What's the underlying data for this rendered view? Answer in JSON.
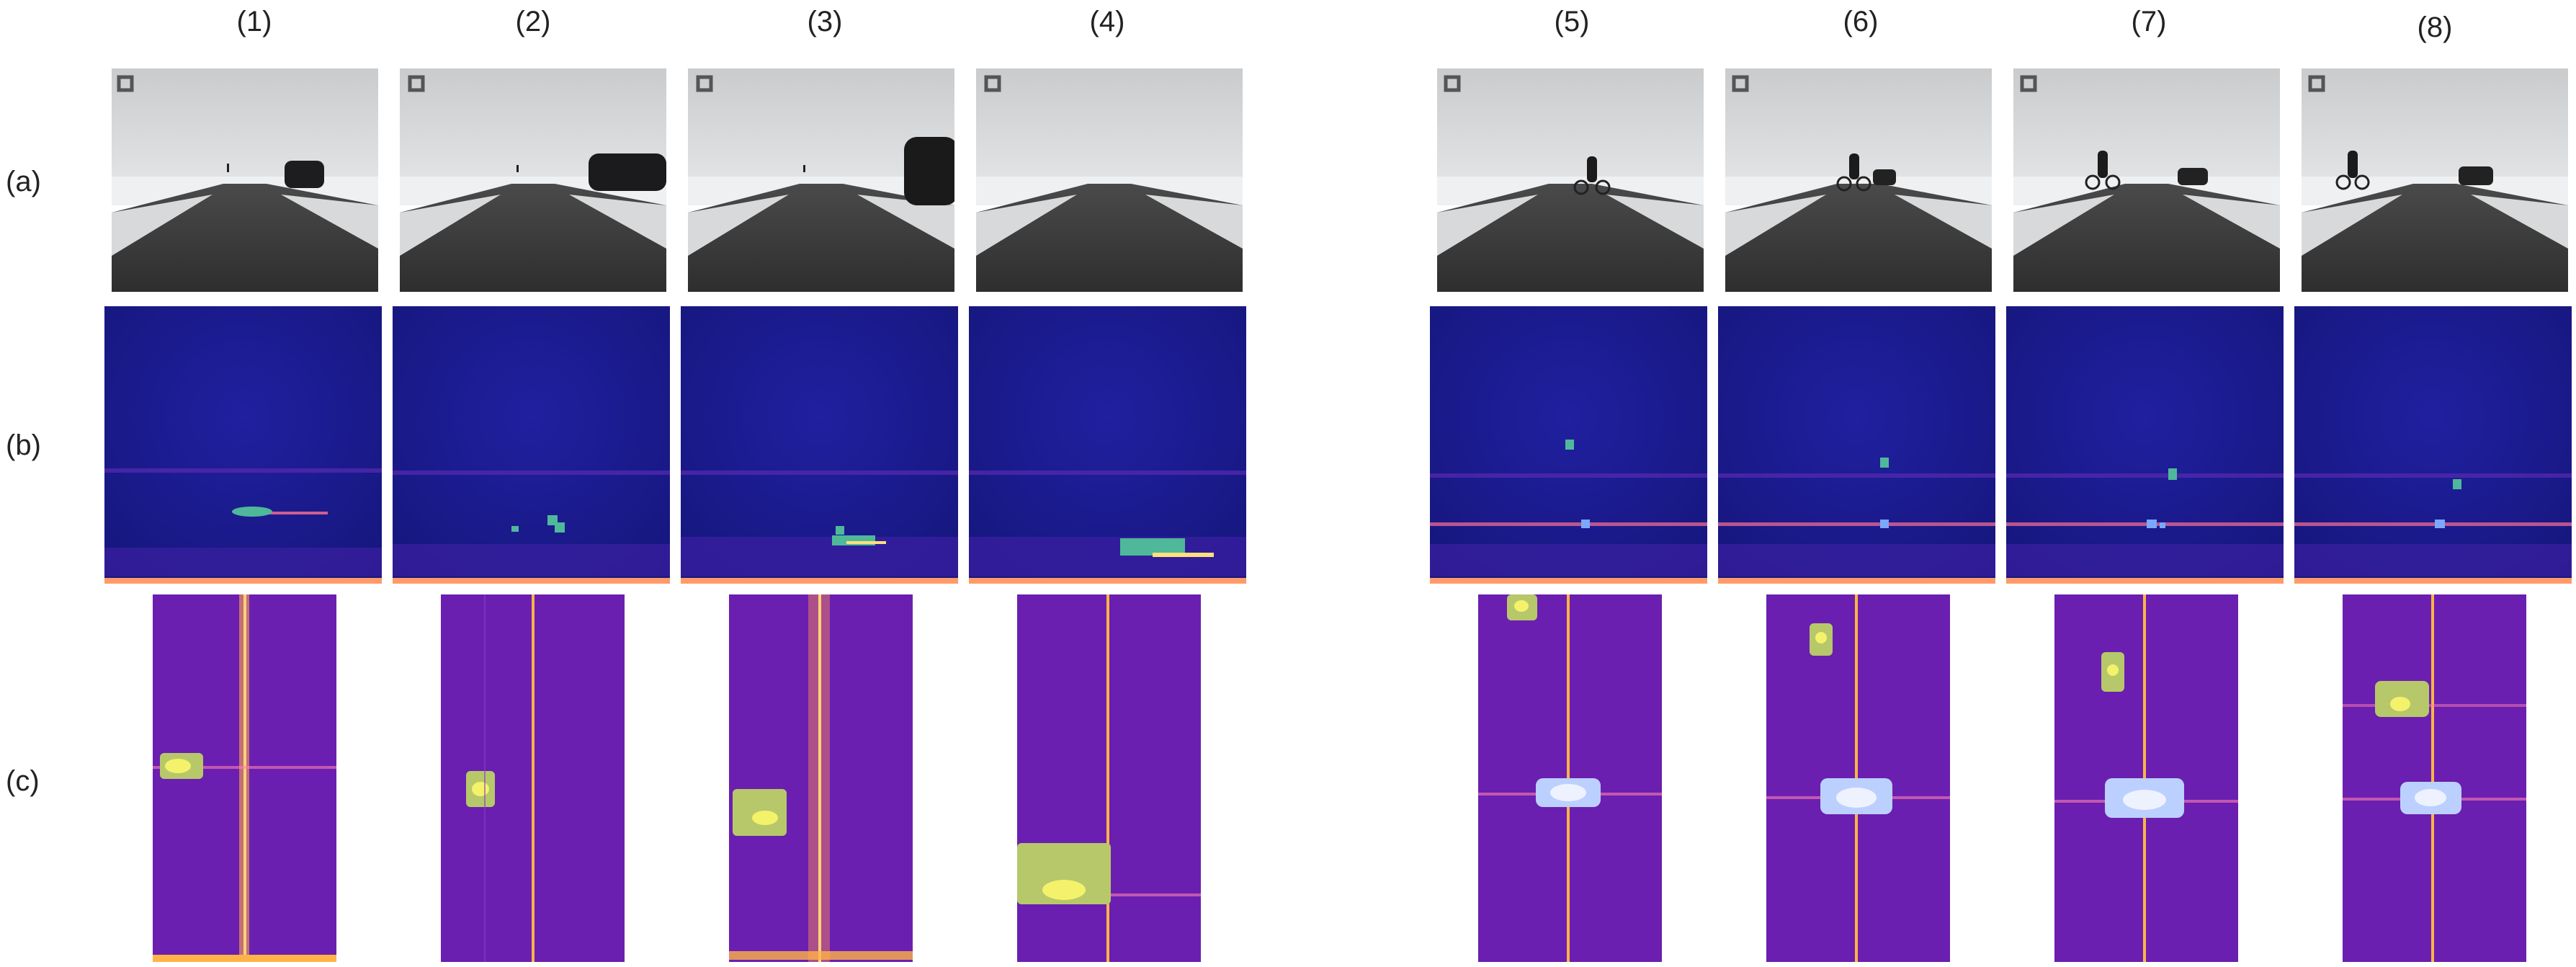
{
  "column_labels": [
    "(1)",
    "(2)",
    "(3)",
    "(4)",
    "(5)",
    "(6)",
    "(7)",
    "(8)"
  ],
  "row_labels": [
    "(a)",
    "(b)",
    "(c)"
  ],
  "panels": {
    "a": [
      {
        "object": "car",
        "icon": "car-icon"
      },
      {
        "object": "car",
        "icon": "car-icon"
      },
      {
        "object": "car",
        "icon": "car-icon"
      },
      {
        "object": "none",
        "icon": ""
      },
      {
        "object": "cyclist",
        "icon": "bicycle-icon"
      },
      {
        "object": "cyclist-and-car",
        "icon": "bicycle-icon"
      },
      {
        "object": "cyclist-and-car",
        "icon": "bicycle-icon"
      },
      {
        "object": "cyclist-and-car",
        "icon": "bicycle-icon"
      }
    ]
  },
  "colors": {
    "range_doppler_background": "#1a1a8c",
    "doppler_background": "#6a1fb0",
    "detection_green": "#4fb89a",
    "hotspot_yellow": "#f4f26a",
    "hotspot_white": "#eef2ff",
    "zero_doppler_line": "#ffb347"
  }
}
